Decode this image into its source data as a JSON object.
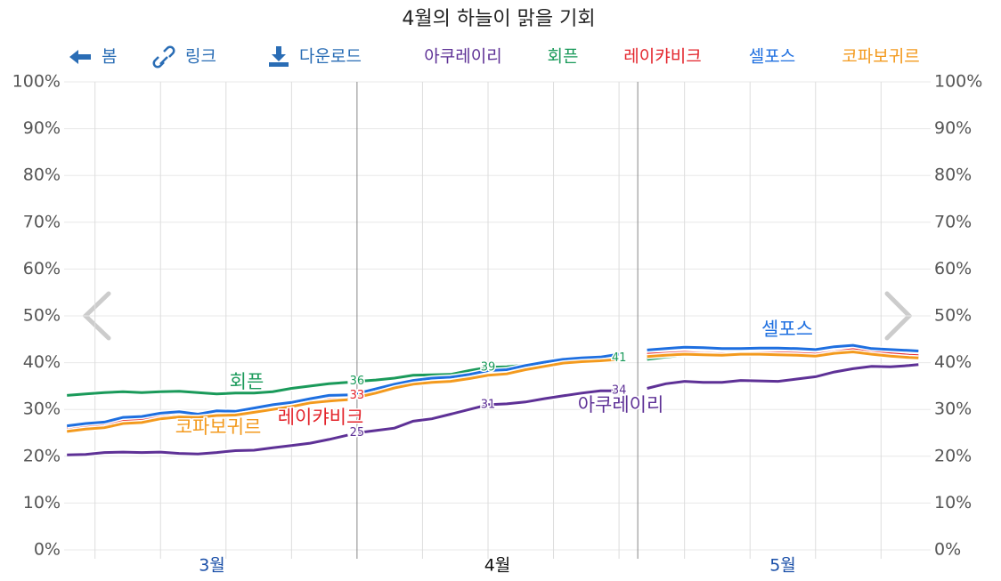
{
  "toolbar": [
    "봄",
    "링크",
    "다운로드"
  ],
  "chart_data": {
    "type": "line",
    "title": "4월의 하늘이 맑을 기회",
    "x": [
      0,
      2,
      4,
      6,
      8,
      10,
      12,
      14,
      16,
      18,
      20,
      22,
      24,
      26,
      28,
      30,
      30.5,
      31,
      33,
      35,
      37,
      39,
      41,
      43,
      45,
      47,
      49,
      51,
      53,
      55,
      57,
      59,
      60.5,
      62,
      64,
      66,
      68,
      70,
      72,
      74,
      76,
      78,
      80,
      82,
      84,
      86,
      88,
      90,
      91
    ],
    "series": [
      {
        "name": "아쿠레이리",
        "color": "#5e3196",
        "labeled_x": [
          31,
          45,
          59
        ],
        "values": [
          20.3,
          20.4,
          20.8,
          20.9,
          20.8,
          20.9,
          20.6,
          20.5,
          20.8,
          21.2,
          21.3,
          21.8,
          22.3,
          22.8,
          23.6,
          24.5,
          null,
          25,
          25.5,
          26,
          27.5,
          28,
          29,
          30,
          31,
          31.2,
          31.6,
          32.3,
          32.9,
          33.5,
          34,
          34,
          null,
          34.5,
          35.5,
          36,
          35.8,
          35.8,
          36.2,
          36.1,
          36,
          36.5,
          37,
          38,
          38.7,
          39.2,
          39.1,
          39.4,
          39.6
        ]
      },
      {
        "name": "회픈",
        "color": "#1a9a5a",
        "labeled_x": [
          31,
          45,
          59
        ],
        "values": [
          33,
          33.3,
          33.6,
          33.8,
          33.6,
          33.8,
          33.9,
          33.6,
          33.3,
          33.5,
          33.5,
          33.8,
          34.5,
          35,
          35.5,
          35.8,
          null,
          36,
          36.3,
          36.7,
          37.3,
          37.4,
          37.5,
          38.3,
          39,
          39.1,
          39.5,
          40.1,
          40.3,
          40.5,
          40.6,
          41,
          null,
          40.7,
          41.2,
          41.6,
          41.8,
          41.9,
          42,
          42.1,
          42,
          41.9,
          41.8,
          42.2,
          42.3,
          41.7,
          41.5,
          41.3,
          41.2
        ]
      },
      {
        "name": "레이캬비크",
        "color": "#e3242b",
        "labeled_x": [
          31
        ],
        "values": [
          26,
          26.5,
          26.8,
          27.5,
          27.8,
          28.5,
          28.9,
          28.7,
          29.2,
          29.2,
          29.8,
          30.5,
          31.1,
          31.8,
          32.3,
          32.6,
          null,
          33,
          34,
          35,
          35.8,
          36.2,
          36.4,
          37,
          37.8,
          38,
          38.9,
          39.6,
          40.2,
          40.5,
          40.7,
          41.1,
          null,
          41.8,
          42,
          42.2,
          42,
          41.9,
          42,
          42.1,
          42.1,
          42,
          41.8,
          42.3,
          42.8,
          42.2,
          41.9,
          41.6,
          41.5
        ]
      },
      {
        "name": "셀포스",
        "color": "#1e6fe0",
        "labeled_x": [],
        "values": [
          26.5,
          27,
          27.3,
          28.3,
          28.5,
          29.2,
          29.5,
          29,
          29.7,
          29.6,
          30.3,
          31,
          31.5,
          32.3,
          33,
          33.1,
          null,
          33.4,
          34.4,
          35.4,
          36.2,
          36.7,
          36.9,
          37.5,
          38.3,
          38.5,
          39.4,
          40.1,
          40.7,
          41,
          41.2,
          41.8,
          null,
          42.7,
          43,
          43.3,
          43.2,
          43,
          43,
          43.1,
          43.1,
          43,
          42.8,
          43.4,
          43.7,
          43,
          42.8,
          42.6,
          42.5
        ]
      },
      {
        "name": "코파보귀르",
        "color": "#f39a1e",
        "labeled_x": [],
        "values": [
          25.3,
          25.8,
          26.1,
          27,
          27.2,
          28,
          28.4,
          28.3,
          28.7,
          28.8,
          29.4,
          30,
          30.6,
          31.4,
          31.8,
          32.1,
          null,
          32.6,
          33.5,
          34.6,
          35.4,
          35.8,
          36,
          36.6,
          37.3,
          37.6,
          38.5,
          39.2,
          39.9,
          40.2,
          40.4,
          40.7,
          null,
          41.3,
          41.6,
          41.8,
          41.7,
          41.6,
          41.8,
          41.8,
          41.7,
          41.6,
          41.4,
          42,
          42.3,
          41.8,
          41.4,
          41.1,
          41
        ]
      }
    ],
    "xlim": [
      -0.3,
      92.3
    ],
    "xticks": [
      {
        "value": 15.5,
        "label": "3월"
      },
      {
        "value": 46,
        "label": "4월"
      },
      {
        "value": 76.5,
        "label": "5월"
      }
    ],
    "xgrid": [
      3,
      10,
      17,
      24,
      38,
      45,
      52,
      59,
      66,
      73,
      80,
      87
    ],
    "month_lines": [
      31,
      61
    ],
    "ylim": [
      0,
      100
    ],
    "yticks": [
      {
        "value": 0,
        "label": "0%"
      },
      {
        "value": 10,
        "label": "10%"
      },
      {
        "value": 20,
        "label": "20%"
      },
      {
        "value": 30,
        "label": "30%"
      },
      {
        "value": 40,
        "label": "40%"
      },
      {
        "value": 50,
        "label": "50%"
      },
      {
        "value": 60,
        "label": "60%"
      },
      {
        "value": 70,
        "label": "70%"
      },
      {
        "value": 80,
        "label": "80%"
      },
      {
        "value": 90,
        "label": "90%"
      },
      {
        "value": 100,
        "label": "100%"
      }
    ],
    "grid": true
  }
}
